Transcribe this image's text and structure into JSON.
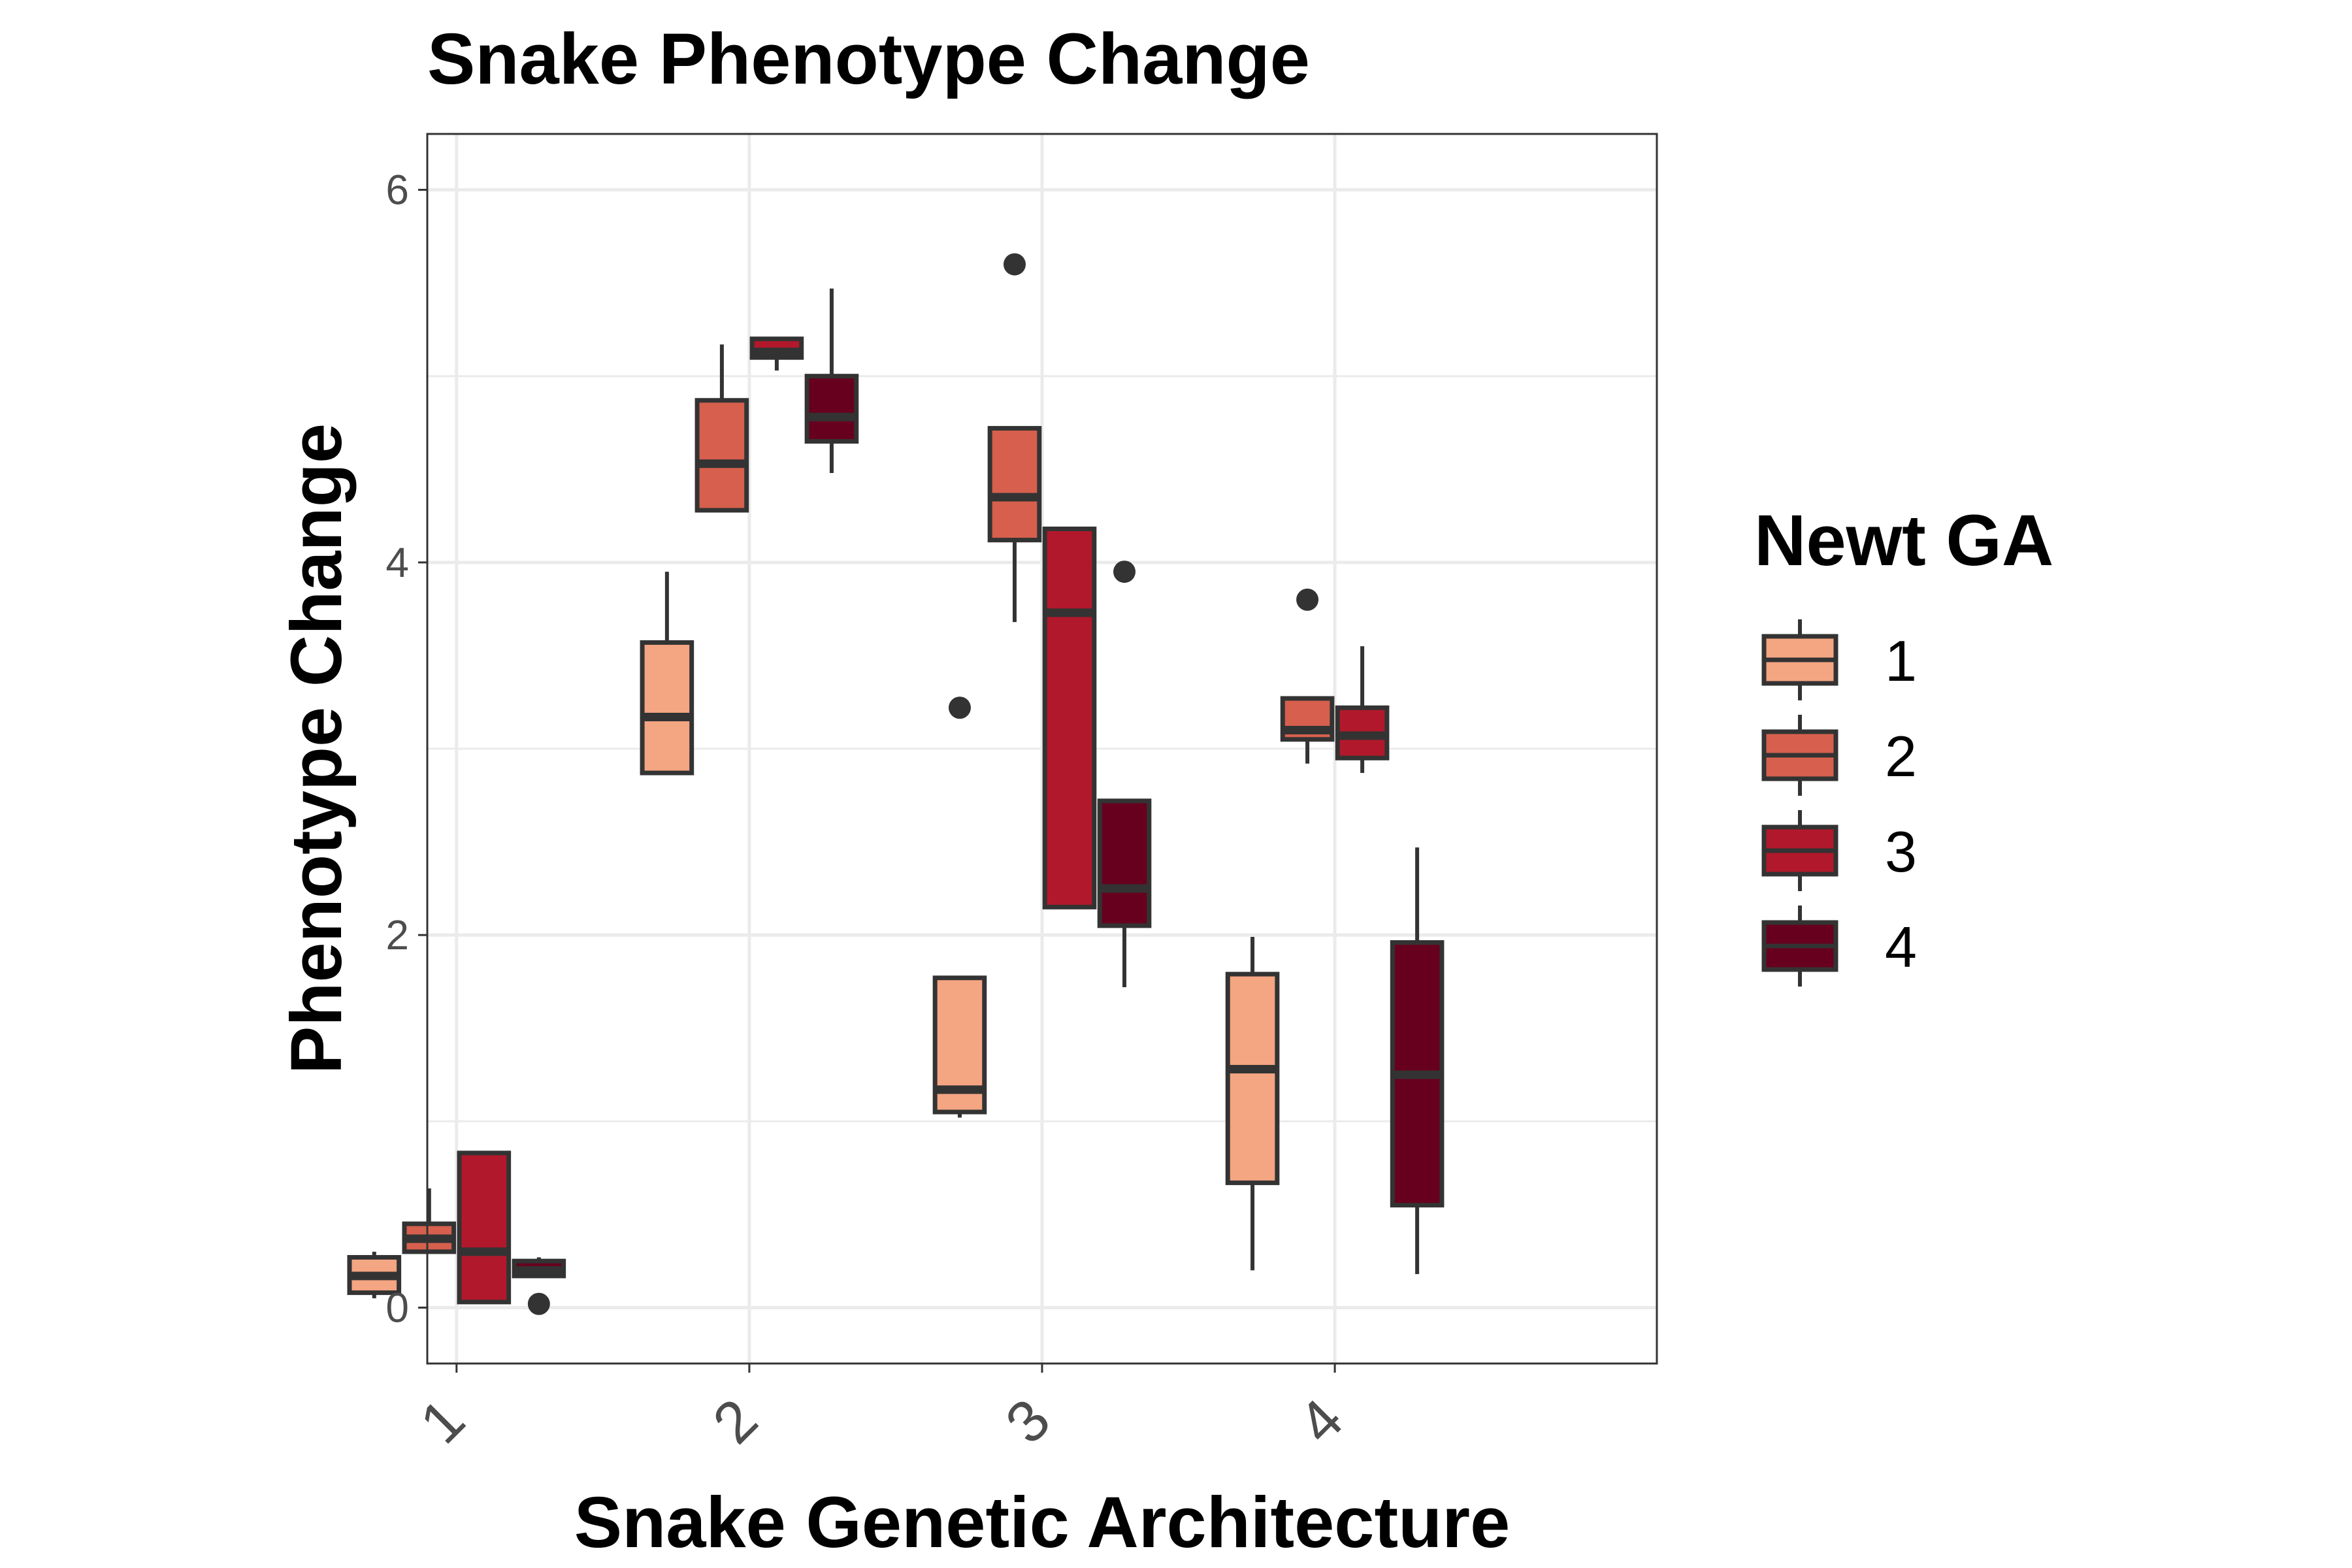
{
  "chart_data": {
    "type": "boxplot",
    "title": "Snake Phenotype Change",
    "xlabel": "Snake Genetic Architecture",
    "ylabel": "Phenotype Change",
    "categories": [
      "1",
      "2",
      "3",
      "4"
    ],
    "ylim": [
      -0.3,
      6.3
    ],
    "yticks": [
      0,
      2,
      4,
      6
    ],
    "grid": true,
    "legend": {
      "title": "Newt GA",
      "position": "right"
    },
    "series": [
      {
        "name": "1",
        "color": "#F4A582",
        "boxes": [
          {
            "category": "1",
            "min": 0.05,
            "q1": 0.08,
            "median": 0.17,
            "q3": 0.27,
            "max": 0.3,
            "outliers": []
          },
          {
            "category": "2",
            "min": 2.87,
            "q1": 2.87,
            "median": 3.17,
            "q3": 3.57,
            "max": 3.95,
            "outliers": []
          },
          {
            "category": "3",
            "min": 1.02,
            "q1": 1.05,
            "median": 1.17,
            "q3": 1.77,
            "max": 1.77,
            "outliers": [
              3.22
            ]
          },
          {
            "category": "4",
            "min": 0.2,
            "q1": 0.67,
            "median": 1.28,
            "q3": 1.79,
            "max": 1.99,
            "outliers": []
          }
        ]
      },
      {
        "name": "2",
        "color": "#D6604D",
        "boxes": [
          {
            "category": "1",
            "min": 0.3,
            "q1": 0.3,
            "median": 0.37,
            "q3": 0.45,
            "max": 0.64,
            "outliers": []
          },
          {
            "category": "2",
            "min": 4.28,
            "q1": 4.28,
            "median": 4.53,
            "q3": 4.87,
            "max": 5.17,
            "outliers": []
          },
          {
            "category": "3",
            "min": 3.68,
            "q1": 4.12,
            "median": 4.35,
            "q3": 4.72,
            "max": 4.72,
            "outliers": [
              5.6
            ]
          },
          {
            "category": "4",
            "min": 2.92,
            "q1": 3.05,
            "median": 3.1,
            "q3": 3.27,
            "max": 3.27,
            "outliers": [
              3.8
            ]
          }
        ]
      },
      {
        "name": "3",
        "color": "#B2182B",
        "boxes": [
          {
            "category": "1",
            "min": 0.03,
            "q1": 0.03,
            "median": 0.3,
            "q3": 0.83,
            "max": 0.83,
            "outliers": []
          },
          {
            "category": "2",
            "min": 5.03,
            "q1": 5.1,
            "median": 5.13,
            "q3": 5.2,
            "max": 5.2,
            "outliers": []
          },
          {
            "category": "3",
            "min": 2.15,
            "q1": 2.15,
            "median": 3.73,
            "q3": 4.18,
            "max": 4.18,
            "outliers": []
          },
          {
            "category": "4",
            "min": 2.87,
            "q1": 2.95,
            "median": 3.07,
            "q3": 3.22,
            "max": 3.55,
            "outliers": []
          }
        ]
      },
      {
        "name": "4",
        "color": "#67001F",
        "boxes": [
          {
            "category": "1",
            "min": 0.17,
            "q1": 0.17,
            "median": 0.2,
            "q3": 0.25,
            "max": 0.27,
            "outliers": [
              0.02
            ]
          },
          {
            "category": "2",
            "min": 4.48,
            "q1": 4.65,
            "median": 4.78,
            "q3": 5.0,
            "max": 5.47,
            "outliers": []
          },
          {
            "category": "3",
            "min": 1.72,
            "q1": 2.05,
            "median": 2.25,
            "q3": 2.72,
            "max": 2.72,
            "outliers": [
              3.95
            ]
          },
          {
            "category": "4",
            "min": 0.18,
            "q1": 0.55,
            "median": 1.25,
            "q3": 1.96,
            "max": 2.47,
            "outliers": []
          }
        ]
      }
    ]
  }
}
